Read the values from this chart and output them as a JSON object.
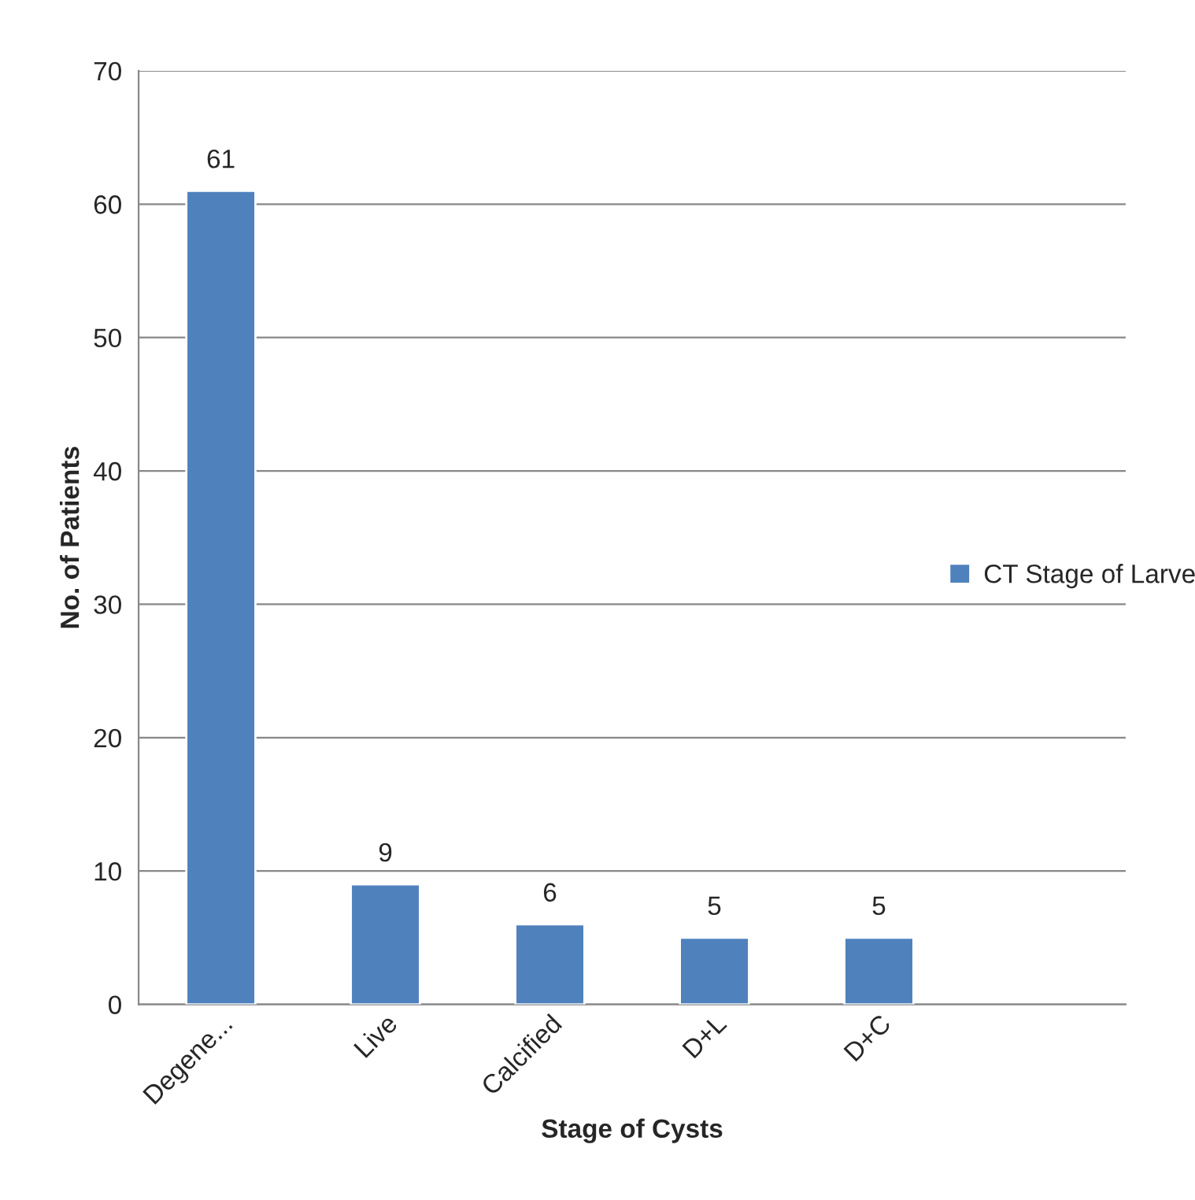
{
  "chart_data": {
    "type": "bar",
    "xlabel": "Stage of Cysts",
    "ylabel": "No. of Patients",
    "categories": [
      "Degene...",
      "Live",
      "Calcified",
      "D+L",
      "D+C",
      null
    ],
    "series": [
      {
        "name": "CT Stage of Larve",
        "color": "#4f81bd",
        "values": [
          61,
          9,
          6,
          5,
          5,
          null
        ]
      }
    ],
    "ylim": [
      0,
      70
    ],
    "yticks": [
      0,
      10,
      20,
      30,
      40,
      50,
      60,
      70
    ],
    "grid": "y",
    "legend": "right",
    "data_labels": true
  }
}
